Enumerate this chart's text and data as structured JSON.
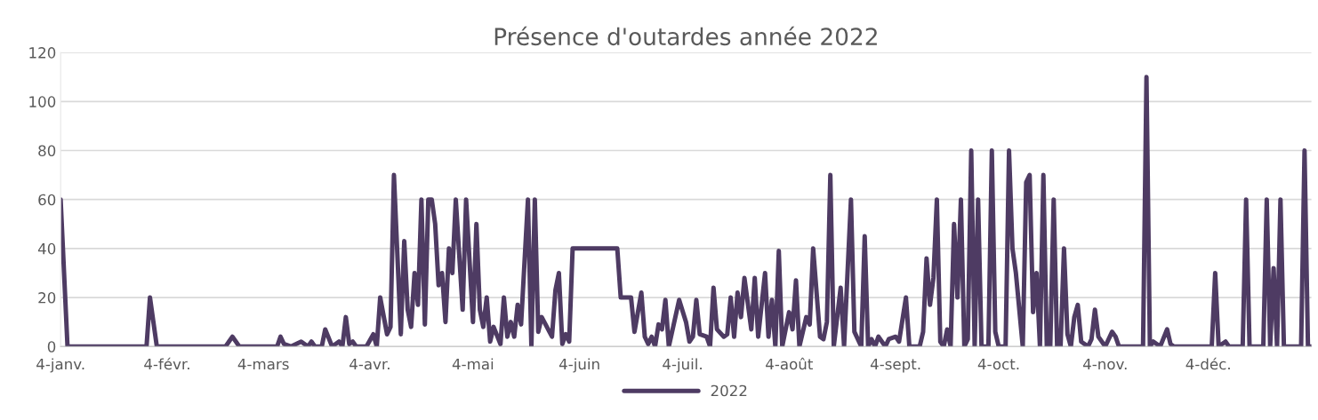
{
  "chart_data": {
    "type": "line",
    "title": "Présence d'outardes année 2022",
    "x": [
      "2022-01-04",
      "2022-01-06",
      "2022-01-29",
      "2022-01-30",
      "2022-02-01",
      "2022-02-21",
      "2022-02-23",
      "2022-02-25",
      "2022-03-08",
      "2022-03-09",
      "2022-03-10",
      "2022-03-12",
      "2022-03-15",
      "2022-03-17",
      "2022-03-18",
      "2022-03-19",
      "2022-03-21",
      "2022-03-22",
      "2022-03-24",
      "2022-03-26",
      "2022-03-27",
      "2022-03-28",
      "2022-03-29",
      "2022-03-30",
      "2022-03-31",
      "2022-04-03",
      "2022-04-05",
      "2022-04-06",
      "2022-04-07",
      "2022-04-09",
      "2022-04-10",
      "2022-04-11",
      "2022-04-13",
      "2022-04-14",
      "2022-04-15",
      "2022-04-16",
      "2022-04-17",
      "2022-04-18",
      "2022-04-19",
      "2022-04-20",
      "2022-04-21",
      "2022-04-22",
      "2022-04-23",
      "2022-04-24",
      "2022-04-25",
      "2022-04-26",
      "2022-04-27",
      "2022-04-28",
      "2022-04-29",
      "2022-05-01",
      "2022-05-02",
      "2022-05-04",
      "2022-05-05",
      "2022-05-06",
      "2022-05-07",
      "2022-05-08",
      "2022-05-09",
      "2022-05-10",
      "2022-05-12",
      "2022-05-13",
      "2022-05-14",
      "2022-05-15",
      "2022-05-16",
      "2022-05-17",
      "2022-05-18",
      "2022-05-20",
      "2022-05-21",
      "2022-05-22",
      "2022-05-23",
      "2022-05-24",
      "2022-05-27",
      "2022-05-28",
      "2022-05-29",
      "2022-05-30",
      "2022-05-31",
      "2022-06-01",
      "2022-06-02",
      "2022-06-15",
      "2022-06-16",
      "2022-06-19",
      "2022-06-20",
      "2022-06-22",
      "2022-06-23",
      "2022-06-24",
      "2022-06-25",
      "2022-06-26",
      "2022-06-27",
      "2022-06-28",
      "2022-06-29",
      "2022-06-30",
      "2022-07-03",
      "2022-07-05",
      "2022-07-06",
      "2022-07-07",
      "2022-07-08",
      "2022-07-09",
      "2022-07-11",
      "2022-07-12",
      "2022-07-13",
      "2022-07-14",
      "2022-07-16",
      "2022-07-17",
      "2022-07-18",
      "2022-07-19",
      "2022-07-20",
      "2022-07-21",
      "2022-07-22",
      "2022-07-24",
      "2022-07-25",
      "2022-07-26",
      "2022-07-28",
      "2022-07-29",
      "2022-07-30",
      "2022-07-31",
      "2022-08-01",
      "2022-08-02",
      "2022-08-04",
      "2022-08-05",
      "2022-08-06",
      "2022-08-07",
      "2022-08-09",
      "2022-08-10",
      "2022-08-11",
      "2022-08-13",
      "2022-08-14",
      "2022-08-15",
      "2022-08-16",
      "2022-08-17",
      "2022-08-19",
      "2022-08-20",
      "2022-08-22",
      "2022-08-23",
      "2022-08-25",
      "2022-08-26",
      "2022-08-27",
      "2022-08-28",
      "2022-08-29",
      "2022-08-30",
      "2022-09-01",
      "2022-09-02",
      "2022-09-04",
      "2022-09-05",
      "2022-09-07",
      "2022-09-08",
      "2022-09-11",
      "2022-09-12",
      "2022-09-13",
      "2022-09-14",
      "2022-09-15",
      "2022-09-16",
      "2022-09-17",
      "2022-09-18",
      "2022-09-19",
      "2022-09-20",
      "2022-09-21",
      "2022-09-22",
      "2022-09-23",
      "2022-09-24",
      "2022-09-25",
      "2022-09-26",
      "2022-09-27",
      "2022-09-28",
      "2022-09-29",
      "2022-10-01",
      "2022-10-02",
      "2022-10-03",
      "2022-10-04",
      "2022-10-06",
      "2022-10-07",
      "2022-10-08",
      "2022-10-09",
      "2022-10-11",
      "2022-10-12",
      "2022-10-13",
      "2022-10-14",
      "2022-10-15",
      "2022-10-16",
      "2022-10-17",
      "2022-10-18",
      "2022-10-19",
      "2022-10-20",
      "2022-10-21",
      "2022-10-22",
      "2022-10-23",
      "2022-10-24",
      "2022-10-25",
      "2022-10-26",
      "2022-10-27",
      "2022-10-28",
      "2022-10-30",
      "2022-10-31",
      "2022-11-01",
      "2022-11-02",
      "2022-11-04",
      "2022-11-06",
      "2022-11-07",
      "2022-11-08",
      "2022-11-15",
      "2022-11-16",
      "2022-11-17",
      "2022-11-18",
      "2022-11-20",
      "2022-11-22",
      "2022-11-23",
      "2022-11-24",
      "2022-12-05",
      "2022-12-06",
      "2022-12-07",
      "2022-12-09",
      "2022-12-10",
      "2022-12-14",
      "2022-12-15",
      "2022-12-16",
      "2022-12-20",
      "2022-12-21",
      "2022-12-22",
      "2022-12-23",
      "2022-12-24",
      "2022-12-25",
      "2022-12-26",
      "2022-12-31",
      "2023-01-01",
      "2023-01-02",
      "2023-01-03"
    ],
    "series": [
      {
        "name": "2022",
        "color": "#4e3b63",
        "values": [
          60,
          0,
          0,
          20,
          0,
          0,
          4,
          0,
          0,
          4,
          1,
          0,
          2,
          0,
          2,
          0,
          0,
          7,
          0,
          2,
          0,
          12,
          1,
          2,
          0,
          0,
          5,
          0,
          20,
          5,
          8,
          70,
          5,
          43,
          15,
          8,
          30,
          17,
          60,
          9,
          60,
          60,
          50,
          25,
          30,
          10,
          40,
          30,
          60,
          15,
          60,
          10,
          50,
          15,
          8,
          20,
          2,
          8,
          1,
          20,
          4,
          10,
          4,
          17,
          9,
          60,
          0,
          60,
          6,
          12,
          4,
          23,
          30,
          1,
          5,
          2,
          40,
          40,
          20,
          20,
          6,
          22,
          4,
          1,
          4,
          0,
          9,
          7,
          19,
          0,
          19,
          10,
          2,
          4,
          19,
          5,
          4,
          0,
          24,
          7,
          4,
          5,
          20,
          4,
          22,
          12,
          28,
          7,
          28,
          4,
          30,
          4,
          19,
          0,
          39,
          0,
          14,
          7,
          27,
          0,
          12,
          9,
          40,
          4,
          3,
          10,
          70,
          0,
          24,
          0,
          60,
          6,
          0,
          45,
          0,
          3,
          0,
          4,
          0,
          3,
          4,
          2,
          20,
          0,
          0,
          6,
          36,
          17,
          28,
          60,
          2,
          0,
          7,
          0,
          50,
          20,
          60,
          0,
          3,
          80,
          0,
          60,
          0,
          0,
          80,
          6,
          0,
          0,
          80,
          40,
          30,
          0,
          67,
          70,
          14,
          30,
          0,
          70,
          0,
          0,
          60,
          0,
          0,
          40,
          5,
          0,
          12,
          17,
          2,
          0,
          3,
          15,
          4,
          0,
          6,
          4,
          0,
          0,
          110,
          0,
          2,
          0,
          7,
          1,
          0,
          0,
          30,
          0,
          2,
          0,
          0,
          60,
          0,
          0,
          60,
          0,
          32,
          0,
          60,
          0,
          0,
          80,
          0,
          0
        ]
      }
    ],
    "xlim": [
      "2022-01-04",
      "2023-01-03"
    ],
    "xticks": [
      {
        "value": "2022-01-04",
        "label": "4-janv."
      },
      {
        "value": "2022-02-04",
        "label": "4-févr."
      },
      {
        "value": "2022-03-04",
        "label": "4-mars"
      },
      {
        "value": "2022-04-04",
        "label": "4-avr."
      },
      {
        "value": "2022-05-04",
        "label": "4-mai"
      },
      {
        "value": "2022-06-04",
        "label": "4-juin"
      },
      {
        "value": "2022-07-04",
        "label": "4-juil."
      },
      {
        "value": "2022-08-04",
        "label": "4-août"
      },
      {
        "value": "2022-09-04",
        "label": "4-sept."
      },
      {
        "value": "2022-10-04",
        "label": "4-oct."
      },
      {
        "value": "2022-11-04",
        "label": "4-nov."
      },
      {
        "value": "2022-12-04",
        "label": "4-déc."
      }
    ],
    "ylim": [
      0,
      120
    ],
    "yticks": [
      0,
      20,
      40,
      60,
      80,
      100,
      120
    ],
    "grid": "y",
    "legend": "bottom",
    "marker": "none",
    "line_style": "solid"
  }
}
